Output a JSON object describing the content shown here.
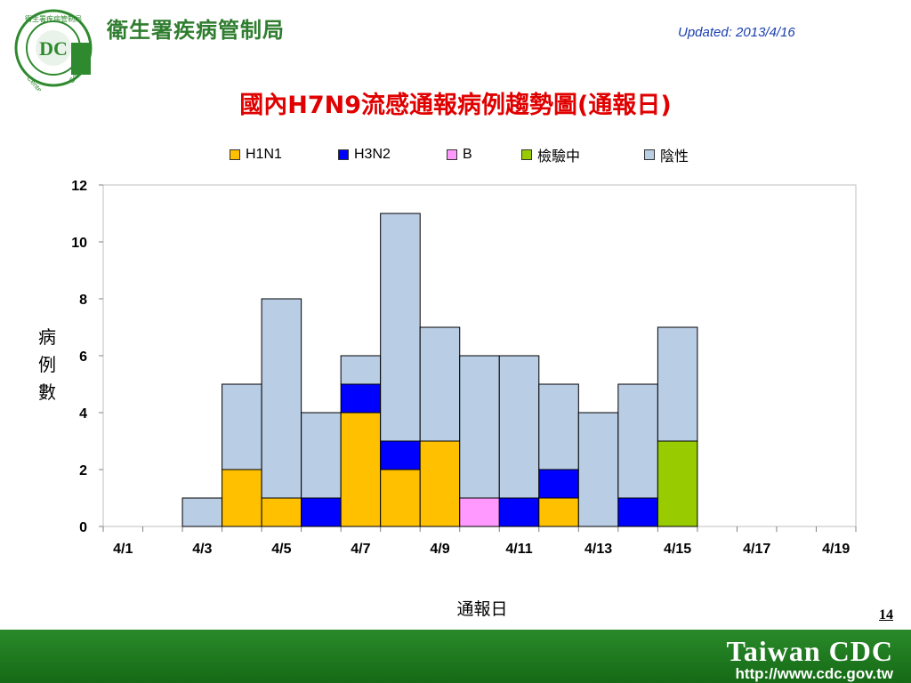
{
  "header": {
    "org_name": "衛生署疾病管制局",
    "logo_text_top": "衛生署疾病管制局",
    "logo_text_left": "Center",
    "logo_text_right": "Control",
    "logo_letters": "DC",
    "updated": "Updated: 2013/4/16"
  },
  "chart_data": {
    "type": "bar",
    "stacked": true,
    "title": "國內H7N9流感通報病例趨勢圖(通報日)",
    "xlabel": "通報日",
    "ylabel": "病例數",
    "ylim": [
      0,
      12
    ],
    "yticks": [
      0,
      2,
      4,
      6,
      8,
      10,
      12
    ],
    "categories": [
      "4/1",
      "4/2",
      "4/3",
      "4/4",
      "4/5",
      "4/6",
      "4/7",
      "4/8",
      "4/9",
      "4/10",
      "4/11",
      "4/12",
      "4/13",
      "4/14",
      "4/15",
      "4/16",
      "4/17",
      "4/18",
      "4/19"
    ],
    "xtick_labels": [
      "4/1",
      "4/3",
      "4/5",
      "4/7",
      "4/9",
      "4/11",
      "4/13",
      "4/15",
      "4/17",
      "4/19"
    ],
    "series": [
      {
        "name": "H1N1",
        "color": "#ffc000",
        "values": [
          0,
          0,
          0,
          2,
          1,
          0,
          4,
          2,
          3,
          0,
          0,
          1,
          0,
          0,
          0,
          0,
          0,
          0,
          0
        ]
      },
      {
        "name": "H3N2",
        "color": "#0000ff",
        "values": [
          0,
          0,
          0,
          0,
          0,
          1,
          1,
          1,
          0,
          0,
          1,
          1,
          0,
          1,
          0,
          0,
          0,
          0,
          0
        ]
      },
      {
        "name": "B",
        "color": "#ff99ff",
        "values": [
          0,
          0,
          0,
          0,
          0,
          0,
          0,
          0,
          0,
          1,
          0,
          0,
          0,
          0,
          0,
          0,
          0,
          0,
          0
        ]
      },
      {
        "name": "檢驗中",
        "color": "#99cc00",
        "values": [
          0,
          0,
          0,
          0,
          0,
          0,
          0,
          0,
          0,
          0,
          0,
          0,
          0,
          0,
          3,
          0,
          0,
          0,
          0
        ]
      },
      {
        "name": "陰性",
        "color": "#b9cde5",
        "values": [
          0,
          0,
          1,
          3,
          7,
          3,
          1,
          8,
          4,
          5,
          5,
          3,
          4,
          4,
          4,
          0,
          0,
          0,
          0
        ]
      }
    ],
    "legend_position": "top",
    "grid": false
  },
  "footer": {
    "page_number": "14",
    "brand": "Taiwan CDC",
    "url": "http://www.cdc.gov.tw"
  }
}
